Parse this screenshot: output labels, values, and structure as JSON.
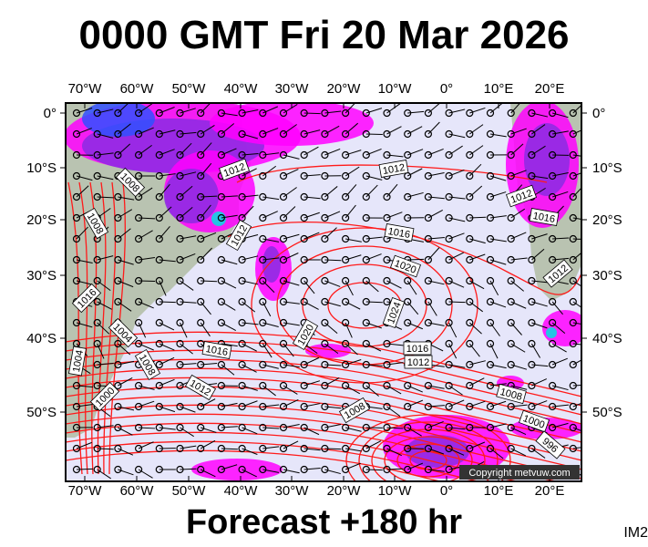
{
  "title": "0000 GMT Fri 20 Mar 2026",
  "footer": "Forecast +180 hr",
  "image_id_label": "IM2",
  "copyright": "Copyright metvuw.com",
  "longitude_ticks": [
    "70°W",
    "60°W",
    "50°W",
    "40°W",
    "30°W",
    "20°W",
    "10°W",
    "0°",
    "10°E",
    "20°E"
  ],
  "latitude_ticks": [
    "0°",
    "10°S",
    "20°S",
    "30°S",
    "40°S",
    "50°S"
  ],
  "isobar_labels": [
    "1012",
    "1012",
    "1008",
    "1008",
    "1012",
    "1016",
    "1020",
    "1016",
    "1024",
    "1020",
    "1004",
    "1008",
    "1016",
    "1016",
    "1012",
    "1012",
    "1004",
    "1000",
    "1008",
    "1008",
    "1000",
    "996",
    "1012",
    "1016",
    "1012"
  ],
  "colors": {
    "ocean": "#e6e6fa",
    "land": "#b9c3b1",
    "isobar": "#ff1a1a",
    "precip_light": "#ff00ff",
    "precip_mid": "#8a2be2",
    "precip_heavy": "#3050ff",
    "precip_peak": "#00e0e0"
  }
}
